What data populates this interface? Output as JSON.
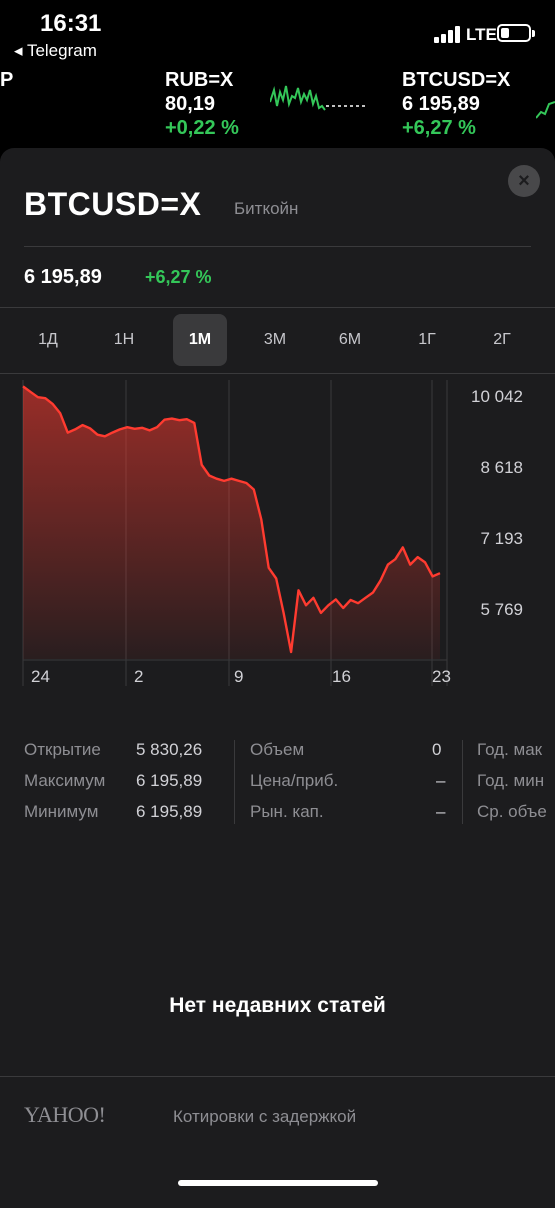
{
  "status": {
    "time": "16:31",
    "back_app": "◂ Telegram",
    "network": "LTE"
  },
  "ticker": [
    {
      "symbol": "P",
      "price": "",
      "change": ""
    },
    {
      "symbol": "RUB=X",
      "price": "80,19",
      "change": "+0,22 %"
    },
    {
      "symbol": "BTCUSD=X",
      "price": "6 195,89",
      "change": "+6,27 %"
    }
  ],
  "detail": {
    "symbol": "BTCUSD=X",
    "name": "Биткойн",
    "price": "6 195,89",
    "change": "+6,27 %",
    "close_icon": "×"
  },
  "ranges": [
    "1Д",
    "1Н",
    "1М",
    "3М",
    "6М",
    "1Г",
    "2Г"
  ],
  "active_range": "1М",
  "chart_data": {
    "type": "area",
    "x_labels": [
      "24",
      "2",
      "9",
      "16",
      "23"
    ],
    "y_ticks": [
      "10 042",
      "8 618",
      "7 193",
      "5 769"
    ],
    "ylim": [
      5100,
      10300
    ],
    "color": "#ff3b30",
    "values": [
      10180,
      10080,
      9980,
      9960,
      9850,
      9680,
      9320,
      9380,
      9460,
      9400,
      9280,
      9250,
      9320,
      9380,
      9420,
      9390,
      9410,
      9360,
      9420,
      9560,
      9580,
      9550,
      9570,
      9500,
      8720,
      8520,
      8460,
      8420,
      8460,
      8420,
      8380,
      8260,
      7700,
      6800,
      6600,
      5960,
      5230,
      6380,
      6100,
      6240,
      5960,
      6100,
      6210,
      6050,
      6200,
      6140,
      6240,
      6340,
      6560,
      6860,
      6960,
      7180,
      6860,
      7000,
      6900,
      6640,
      6700
    ]
  },
  "stats": {
    "col1": [
      {
        "label": "Открытие",
        "value": "5 830,26"
      },
      {
        "label": "Максимум",
        "value": "6 195,89"
      },
      {
        "label": "Минимум",
        "value": "6 195,89"
      }
    ],
    "col2": [
      {
        "label": "Объем",
        "value": "0"
      },
      {
        "label": "Цена/приб.",
        "value": "–"
      },
      {
        "label": "Рын. кап.",
        "value": "–"
      }
    ],
    "col3": [
      {
        "label": "Год. мак",
        "value": ""
      },
      {
        "label": "Год. мин",
        "value": ""
      },
      {
        "label": "Ср. объе",
        "value": ""
      }
    ]
  },
  "news": {
    "empty": "Нет недавних статей"
  },
  "footer": {
    "brand": "YAHOO!",
    "note": "Котировки с задержкой"
  }
}
